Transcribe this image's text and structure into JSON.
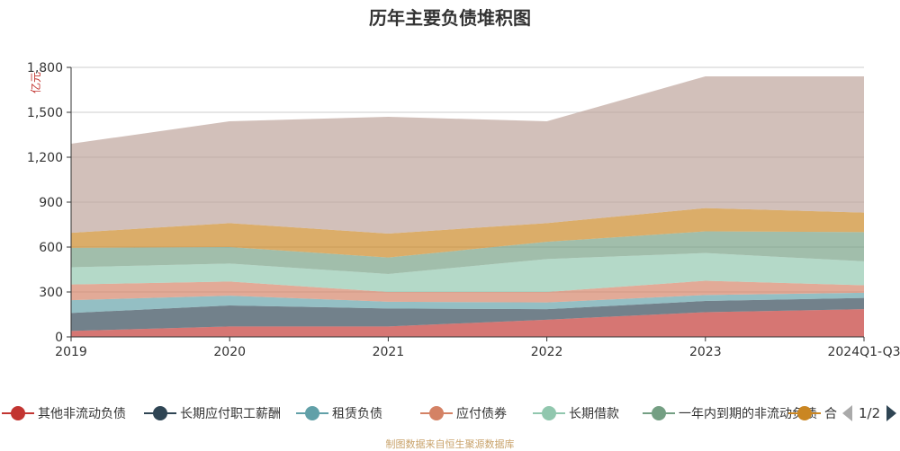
{
  "chart_data": {
    "type": "area",
    "stacked": true,
    "title": "历年主要负债堆积图",
    "ylabel": "亿元",
    "xlabel": "",
    "x": [
      "2019",
      "2020",
      "2021",
      "2022",
      "2023",
      "2024Q1-Q3"
    ],
    "ylim": [
      0,
      1800
    ],
    "yticks": [
      0,
      300,
      600,
      900,
      1200,
      1500,
      1800
    ],
    "ytick_labels": [
      "0",
      "300",
      "600",
      "900",
      "1,200",
      "1,500",
      "1,800"
    ],
    "grid": true,
    "legend_position": "bottom",
    "series": [
      {
        "name": "其他非流动负债",
        "color": "#c23531",
        "values": [
          40,
          70,
          70,
          115,
          165,
          185
        ]
      },
      {
        "name": "长期应付职工薪酬",
        "color": "#2f4554",
        "values": [
          120,
          140,
          120,
          70,
          75,
          75
        ]
      },
      {
        "name": "租赁负债",
        "color": "#61a0a8",
        "values": [
          85,
          65,
          45,
          45,
          40,
          35
        ]
      },
      {
        "name": "应付债券",
        "color": "#d48265",
        "values": [
          105,
          95,
          65,
          70,
          95,
          50
        ]
      },
      {
        "name": "长期借款",
        "color": "#91c7ae",
        "values": [
          115,
          120,
          120,
          220,
          185,
          160
        ]
      },
      {
        "name": "一年内到期的非流动负债",
        "color": "#749f83",
        "values": [
          130,
          110,
          110,
          115,
          145,
          195
        ]
      },
      {
        "name": "合",
        "color": "#ca8622",
        "values": [
          100,
          160,
          160,
          125,
          155,
          130
        ]
      },
      {
        "color": "#bda29a",
        "values": [
          595,
          680,
          780,
          680,
          880,
          910
        ]
      }
    ]
  },
  "legend": {
    "items": [
      {
        "label": "其他非流动负债",
        "color": "#c23531"
      },
      {
        "label": "长期应付职工薪酬",
        "color": "#2f4554"
      },
      {
        "label": "租赁负债",
        "color": "#61a0a8"
      },
      {
        "label": "应付债券",
        "color": "#d48265"
      },
      {
        "label": "长期借款",
        "color": "#91c7ae"
      },
      {
        "label": "一年内到期的非流动负债",
        "color": "#749f83"
      },
      {
        "label": "合",
        "color": "#ca8622"
      }
    ],
    "page_indicator": "1/2"
  },
  "source_note": "制图数据来自恒生聚源数据库"
}
